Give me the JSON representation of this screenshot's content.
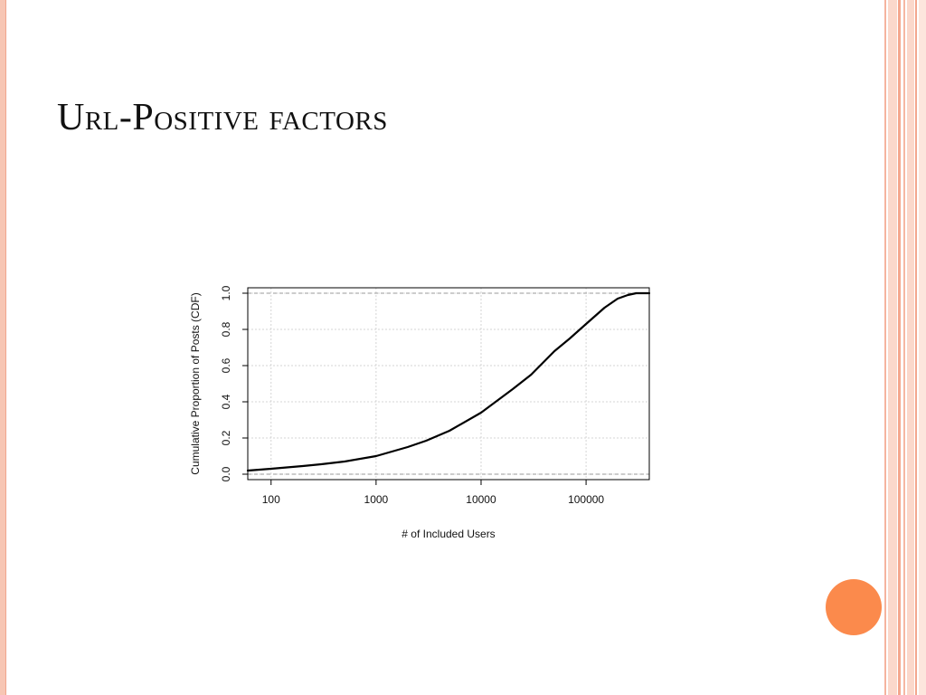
{
  "slide": {
    "title": "Url-Positive factors"
  },
  "colors": {
    "accent_circle": "#fb8a4c",
    "stripe": "#f7c6b4"
  },
  "chart_data": {
    "type": "line",
    "xlabel": "# of Included Users",
    "ylabel": "Cumulative Proportion of Posts (CDF)",
    "x_scale": "log",
    "xlim": [
      60,
      400000
    ],
    "ylim": [
      -0.03,
      1.03
    ],
    "x_ticks": [
      100,
      1000,
      10000,
      100000
    ],
    "x_tick_labels": [
      "100",
      "1000",
      "10000",
      "100000"
    ],
    "y_ticks": [
      0.0,
      0.2,
      0.4,
      0.6,
      0.8,
      1.0
    ],
    "y_tick_labels": [
      "0.0",
      "0.2",
      "0.4",
      "0.6",
      "0.8",
      "1.0"
    ],
    "grid": true,
    "reference_lines_y": [
      0.0,
      1.0
    ],
    "series": [
      {
        "x": [
          60,
          100,
          200,
          300,
          500,
          1000,
          2000,
          3000,
          5000,
          10000,
          20000,
          30000,
          50000,
          70000,
          100000,
          150000,
          200000,
          250000,
          300000,
          400000
        ],
        "y": [
          0.02,
          0.03,
          0.045,
          0.055,
          0.07,
          0.1,
          0.15,
          0.185,
          0.24,
          0.34,
          0.47,
          0.55,
          0.68,
          0.75,
          0.83,
          0.92,
          0.97,
          0.99,
          1.0,
          1.0
        ]
      }
    ]
  }
}
